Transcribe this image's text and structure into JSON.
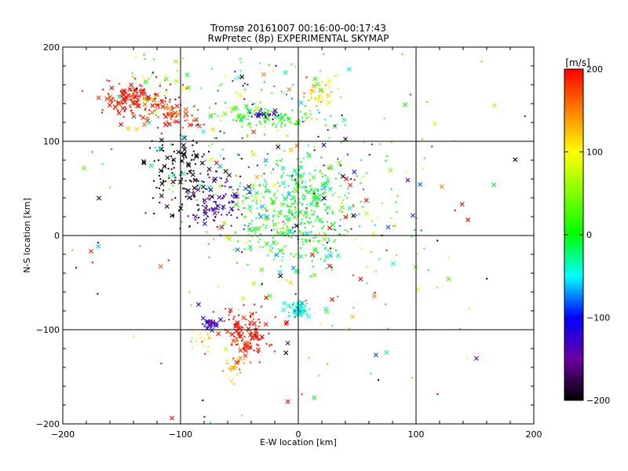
{
  "chart_data": {
    "type": "scatter",
    "title": "Tromsø 20161007 00:16:00-00:17:43",
    "subtitle": "RwPretec (8p) EXPERIMENTAL SKYMAP",
    "xlabel": "E-W location [km]",
    "ylabel": "N-S location [km]",
    "xlim": [
      -200,
      200
    ],
    "ylim": [
      -200,
      200
    ],
    "xticks": [
      -200,
      -100,
      0,
      100,
      200
    ],
    "yticks": [
      -200,
      -100,
      0,
      100,
      200
    ],
    "grid": true,
    "colorbar": {
      "label": "[m/s]",
      "range": [
        -200,
        200
      ],
      "ticks": [
        200,
        100,
        0,
        -100,
        -200
      ],
      "position": "right"
    },
    "marker_types": [
      "dot",
      "x"
    ],
    "clusters": [
      {
        "cx": -140,
        "cy": 145,
        "sx": 14,
        "sy": 10,
        "n": 130,
        "v": 195,
        "vs": 15,
        "xf": 0.3
      },
      {
        "cx": -105,
        "cy": 128,
        "sx": 12,
        "sy": 8,
        "n": 70,
        "v": 185,
        "vs": 20,
        "xf": 0.25
      },
      {
        "cx": -25,
        "cy": 125,
        "sx": 22,
        "sy": 6,
        "n": 110,
        "v": 10,
        "vs": 25,
        "xf": 0.15
      },
      {
        "cx": -30,
        "cy": 128,
        "sx": 6,
        "sy": 4,
        "n": 25,
        "v": -130,
        "vs": 15,
        "xf": 0.3
      },
      {
        "cx": 18,
        "cy": 150,
        "sx": 7,
        "sy": 6,
        "n": 40,
        "v": 120,
        "vs": 20,
        "xf": 0.1
      },
      {
        "cx": -100,
        "cy": 65,
        "sx": 14,
        "sy": 20,
        "n": 120,
        "v": -200,
        "vs": 5,
        "xf": 0.25
      },
      {
        "cx": -70,
        "cy": 35,
        "sx": 13,
        "sy": 15,
        "n": 100,
        "v": -140,
        "vs": 25,
        "xf": 0.3
      },
      {
        "cx": -30,
        "cy": 35,
        "sx": 22,
        "sy": 18,
        "n": 120,
        "v": 30,
        "vs": 60,
        "xf": 0.2
      },
      {
        "cx": 5,
        "cy": 35,
        "sx": 18,
        "sy": 25,
        "n": 230,
        "v": -10,
        "vs": 35,
        "xf": 0.15
      },
      {
        "cx": -30,
        "cy": -5,
        "sx": 22,
        "sy": 12,
        "n": 60,
        "v": -20,
        "vs": 50,
        "xf": 0.2
      },
      {
        "cx": 10,
        "cy": -10,
        "sx": 12,
        "sy": 15,
        "n": 50,
        "v": -10,
        "vs": 30,
        "xf": 0.1
      },
      {
        "cx": 0,
        "cy": -78,
        "sx": 5,
        "sy": 4,
        "n": 60,
        "v": -40,
        "vs": 15,
        "xf": 0.3
      },
      {
        "cx": -45,
        "cy": -105,
        "sx": 10,
        "sy": 12,
        "n": 130,
        "v": 195,
        "vs": 15,
        "xf": 0.35
      },
      {
        "cx": -55,
        "cy": -140,
        "sx": 5,
        "sy": 10,
        "n": 30,
        "v": 130,
        "vs": 40,
        "xf": 0.1
      },
      {
        "cx": -75,
        "cy": -95,
        "sx": 4,
        "sy": 3,
        "n": 25,
        "v": -120,
        "vs": 15,
        "xf": 0.3
      },
      {
        "cx": -80,
        "cy": -110,
        "sx": 6,
        "sy": 6,
        "n": 20,
        "v": 110,
        "vs": 20,
        "xf": 0.1
      },
      {
        "cx": -20,
        "cy": 155,
        "sx": 30,
        "sy": 20,
        "n": 60,
        "v": 0,
        "vs": 90,
        "xf": 0.15
      },
      {
        "cx": -115,
        "cy": 160,
        "sx": 20,
        "sy": 20,
        "n": 40,
        "v": 40,
        "vs": 100,
        "xf": 0.15
      },
      {
        "cx": 40,
        "cy": 40,
        "sx": 30,
        "sy": 40,
        "n": 80,
        "v": 0,
        "vs": 100,
        "xf": 0.2
      },
      {
        "cx": -60,
        "cy": 80,
        "sx": 30,
        "sy": 30,
        "n": 60,
        "v": 20,
        "vs": 100,
        "xf": 0.2
      },
      {
        "cx": 0,
        "cy": 0,
        "sx": 110,
        "sy": 110,
        "n": 260,
        "v": 30,
        "vs": 150,
        "xf": 0.35
      }
    ],
    "seed": 20161007
  }
}
